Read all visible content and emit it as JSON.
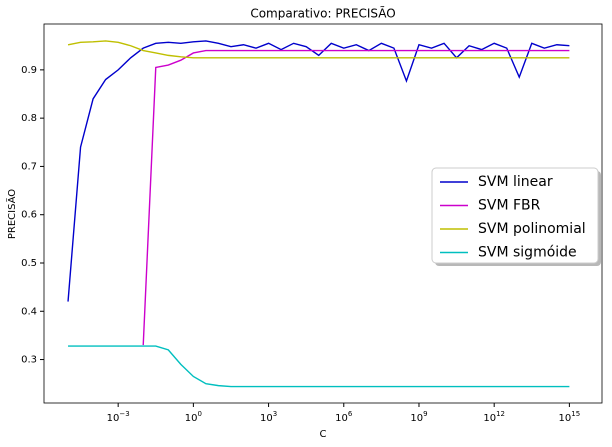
{
  "chart_data": {
    "type": "line",
    "title": "Comparativo: PRECISÃO",
    "xlabel": "C",
    "ylabel": "PRECISÃO",
    "xscale": "log",
    "legend": "center right",
    "x": [
      1e-05,
      3.162e-05,
      0.0001,
      0.0003162,
      0.001,
      0.003162,
      0.01,
      0.03162,
      0.1,
      0.3162,
      1,
      3.162,
      10,
      31.62,
      100,
      316.2,
      1000.0,
      3162,
      10000.0,
      31620.0,
      100000.0,
      316200.0,
      1000000.0,
      3162000.0,
      10000000.0,
      31620000.0,
      100000000.0,
      316200000.0,
      1000000000.0,
      3162000000.0,
      10000000000.0,
      31620000000.0,
      100000000000.0,
      316200000000.0,
      1000000000000.0,
      3162000000000.0,
      10000000000000.0,
      31620000000000.0,
      100000000000000.0,
      316200000000000.0,
      1000000000000000.0
    ],
    "series": [
      {
        "name": "SVM linear",
        "color": "#0000cc",
        "values": [
          0.42,
          0.74,
          0.84,
          0.88,
          0.9,
          0.925,
          0.945,
          0.955,
          0.957,
          0.955,
          0.958,
          0.96,
          0.955,
          0.948,
          0.952,
          0.945,
          0.955,
          0.942,
          0.955,
          0.948,
          0.93,
          0.955,
          0.945,
          0.952,
          0.94,
          0.955,
          0.945,
          0.877,
          0.952,
          0.945,
          0.955,
          0.925,
          0.95,
          0.942,
          0.955,
          0.945,
          0.885,
          0.955,
          0.945,
          0.952,
          0.95
        ]
      },
      {
        "name": "SVM FBR",
        "color": "#cc00cc",
        "values": [
          null,
          null,
          null,
          null,
          null,
          null,
          0.33,
          0.905,
          0.91,
          0.92,
          0.935,
          0.94,
          0.94,
          0.94,
          0.94,
          0.94,
          0.94,
          0.94,
          0.94,
          0.94,
          0.94,
          0.94,
          0.94,
          0.94,
          0.94,
          0.94,
          0.94,
          0.94,
          0.94,
          0.94,
          0.94,
          0.94,
          0.94,
          0.94,
          0.94,
          0.94,
          0.94,
          0.94,
          0.94,
          0.94,
          0.94
        ]
      },
      {
        "name": "SVM polinomial",
        "color": "#bfbf00",
        "values": [
          0.952,
          0.957,
          0.958,
          0.96,
          0.957,
          0.95,
          0.94,
          0.935,
          0.93,
          0.927,
          0.925,
          0.925,
          0.925,
          0.925,
          0.925,
          0.925,
          0.925,
          0.925,
          0.925,
          0.925,
          0.925,
          0.925,
          0.925,
          0.925,
          0.925,
          0.925,
          0.925,
          0.925,
          0.925,
          0.925,
          0.925,
          0.925,
          0.925,
          0.925,
          0.925,
          0.925,
          0.925,
          0.925,
          0.925,
          0.925,
          0.925
        ]
      },
      {
        "name": "SVM sigmóide",
        "color": "#00bfbf",
        "values": [
          0.328,
          0.328,
          0.328,
          0.328,
          0.328,
          0.328,
          0.328,
          0.328,
          0.32,
          0.29,
          0.265,
          0.25,
          0.246,
          0.244,
          0.244,
          0.244,
          0.244,
          0.244,
          0.244,
          0.244,
          0.244,
          0.244,
          0.244,
          0.244,
          0.244,
          0.244,
          0.244,
          0.244,
          0.244,
          0.244,
          0.244,
          0.244,
          0.244,
          0.244,
          0.244,
          0.244,
          0.244,
          0.244,
          0.244,
          0.244,
          0.244
        ]
      }
    ],
    "xlim": [
      1.1e-06,
      2e+16
    ],
    "xticks": [
      {
        "value": 0.001,
        "label": "10",
        "exp": "−3"
      },
      {
        "value": 1,
        "label": "10",
        "exp": "0"
      },
      {
        "value": 1000,
        "label": "10",
        "exp": "3"
      },
      {
        "value": 1000000,
        "label": "10",
        "exp": "6"
      },
      {
        "value": 1000000000,
        "label": "10",
        "exp": "9"
      },
      {
        "value": 1000000000000,
        "label": "10",
        "exp": "12"
      },
      {
        "value": 1000000000000000,
        "label": "10",
        "exp": "15"
      }
    ],
    "ylim": [
      0.21,
      0.995
    ],
    "yticks": [
      0.3,
      0.4,
      0.5,
      0.6,
      0.7,
      0.8,
      0.9
    ]
  }
}
